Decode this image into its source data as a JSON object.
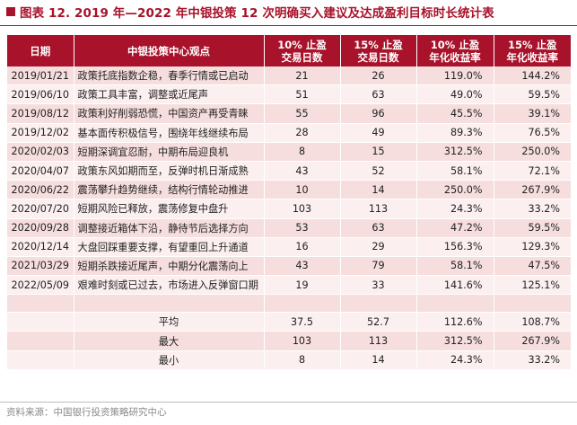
{
  "title": "图表 12. 2019 年—2022 年中银投策 12 次明确买入建议及达成盈利目标时长统计表",
  "headers": {
    "date": "日期",
    "view": "中银投策中心观点",
    "days10_l1": "10% 止盈",
    "days10_l2": "交易日数",
    "days15_l1": "15% 止盈",
    "days15_l2": "交易日数",
    "ret10_l1": "10% 止盈",
    "ret10_l2": "年化收益率",
    "ret15_l1": "15% 止盈",
    "ret15_l2": "年化收益率"
  },
  "rows": [
    {
      "date": "2019/01/21",
      "view": "政策托底指数企稳，春季行情或已启动",
      "d10": "21",
      "d15": "26",
      "r10": "119.0%",
      "r15": "144.2%"
    },
    {
      "date": "2019/06/10",
      "view": "政策工具丰富，调整或近尾声",
      "d10": "51",
      "d15": "63",
      "r10": "49.0%",
      "r15": "59.5%"
    },
    {
      "date": "2019/08/12",
      "view": "政策利好削弱恐慌，中国资产再受青睐",
      "d10": "55",
      "d15": "96",
      "r10": "45.5%",
      "r15": "39.1%"
    },
    {
      "date": "2019/12/02",
      "view": "基本面传积极信号，围绕年线继续布局",
      "d10": "28",
      "d15": "49",
      "r10": "89.3%",
      "r15": "76.5%"
    },
    {
      "date": "2020/02/03",
      "view": "短期深调宜忍耐，中期布局迎良机",
      "d10": "8",
      "d15": "15",
      "r10": "312.5%",
      "r15": "250.0%"
    },
    {
      "date": "2020/04/07",
      "view": "政策东风如期而至，反弹时机日渐成熟",
      "d10": "43",
      "d15": "52",
      "r10": "58.1%",
      "r15": "72.1%"
    },
    {
      "date": "2020/06/22",
      "view": "震荡攀升趋势继续，结构行情轮动推进",
      "d10": "10",
      "d15": "14",
      "r10": "250.0%",
      "r15": "267.9%"
    },
    {
      "date": "2020/07/20",
      "view": "短期风险已释放，震荡修复中盘升",
      "d10": "103",
      "d15": "113",
      "r10": "24.3%",
      "r15": "33.2%"
    },
    {
      "date": "2020/09/28",
      "view": "调整接近箱体下沿，静待节后选择方向",
      "d10": "53",
      "d15": "63",
      "r10": "47.2%",
      "r15": "59.5%"
    },
    {
      "date": "2020/12/14",
      "view": "大盘回踩重要支撑，有望重回上升通道",
      "d10": "16",
      "d15": "29",
      "r10": "156.3%",
      "r15": "129.3%"
    },
    {
      "date": "2021/03/29",
      "view": "短期杀跌接近尾声，中期分化震荡向上",
      "d10": "43",
      "d15": "79",
      "r10": "58.1%",
      "r15": "47.5%"
    },
    {
      "date": "2022/05/09",
      "view": "艰难时刻或已过去，市场进入反弹窗口期",
      "d10": "19",
      "d15": "33",
      "r10": "141.6%",
      "r15": "125.1%"
    }
  ],
  "summary": [
    {
      "label": "平均",
      "d10": "37.5",
      "d15": "52.7",
      "r10": "112.6%",
      "r15": "108.7%"
    },
    {
      "label": "最大",
      "d10": "103",
      "d15": "113",
      "r10": "312.5%",
      "r15": "267.9%"
    },
    {
      "label": "最小",
      "d10": "8",
      "d15": "14",
      "r10": "24.3%",
      "r15": "33.2%"
    }
  ],
  "source": "资料来源：中国银行投资策略研究中心",
  "colors": {
    "accent": "#a8122a",
    "row_odd": "#f6dede",
    "row_even": "#fcefef"
  }
}
